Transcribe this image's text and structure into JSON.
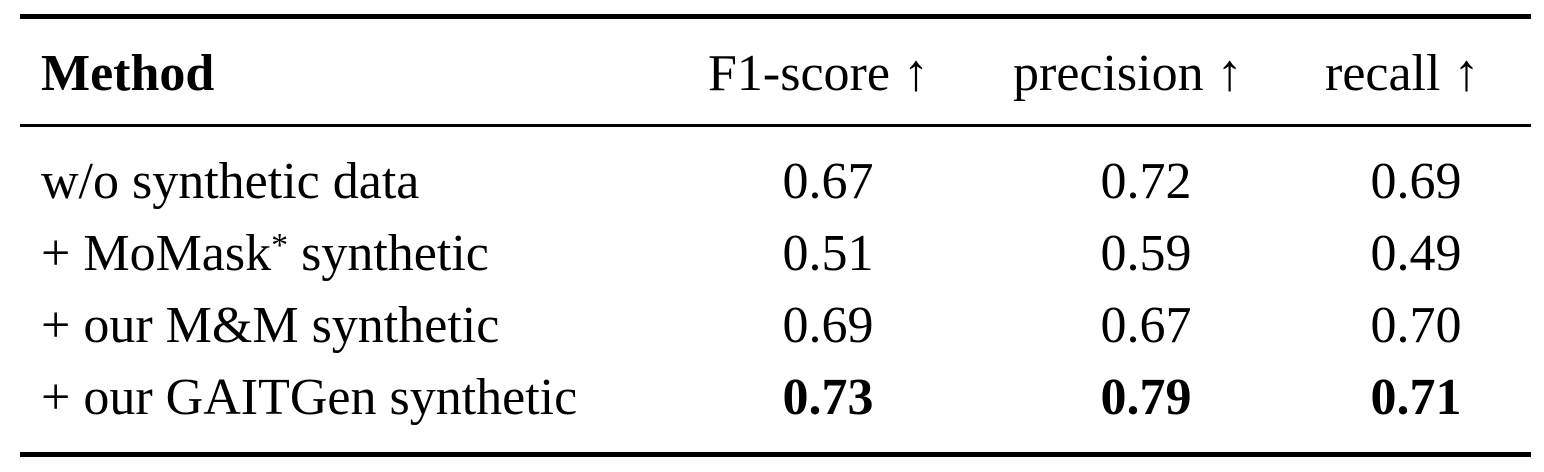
{
  "table": {
    "headers": {
      "method": "Method",
      "f1": "F1-score ↑",
      "precision": "precision ↑",
      "recall": "recall ↑"
    },
    "rows": [
      {
        "method": "w/o synthetic data",
        "f1": "0.67",
        "precision": "0.72",
        "recall": "0.69",
        "best": false
      },
      {
        "method_pre": "+ MoMask",
        "method_sup": "*",
        "method_post": " synthetic",
        "f1": "0.51",
        "precision": "0.59",
        "recall": "0.49",
        "best": false
      },
      {
        "method": "+ our M&M synthetic",
        "f1": "0.69",
        "precision": "0.67",
        "recall": "0.70",
        "best": false
      },
      {
        "method": "+ our GAITGen synthetic",
        "f1": "0.73",
        "precision": "0.79",
        "recall": "0.71",
        "best": true
      }
    ]
  }
}
